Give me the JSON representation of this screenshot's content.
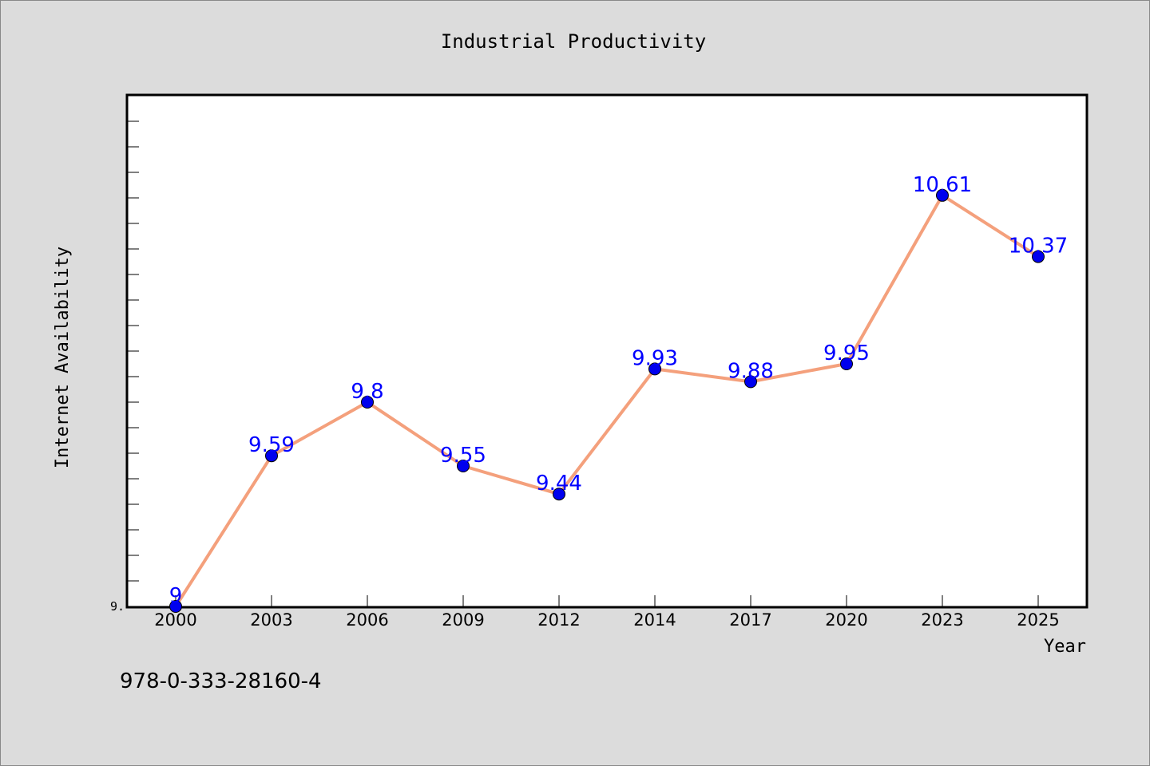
{
  "chart_data": {
    "type": "line",
    "title": "Industrial Productivity",
    "xlabel": "Year",
    "ylabel": "Internet Availability",
    "categories": [
      "2000",
      "2003",
      "2006",
      "2009",
      "2012",
      "2014",
      "2017",
      "2020",
      "2023",
      "2025"
    ],
    "series": [
      {
        "values": [
          9,
          9.59,
          9.8,
          9.55,
          9.44,
          9.93,
          9.88,
          9.95,
          10.61,
          10.37
        ],
        "data_labels": [
          "9",
          "9.59",
          "9.8",
          "9.55",
          "9.44",
          "9.93",
          "9.88",
          "9.95",
          "10.61",
          "10.37"
        ]
      }
    ],
    "ylim": [
      9,
      11
    ],
    "y_tick_labels": [
      "9."
    ],
    "grid": false,
    "legend": "none",
    "colors": {
      "line": "#f4a07c",
      "marker": "#0000ee",
      "data_label": "#0000ff",
      "background": "#dcdcdc",
      "plot_area": "#ffffff"
    }
  },
  "annotation": "978-0-333-28160-4"
}
